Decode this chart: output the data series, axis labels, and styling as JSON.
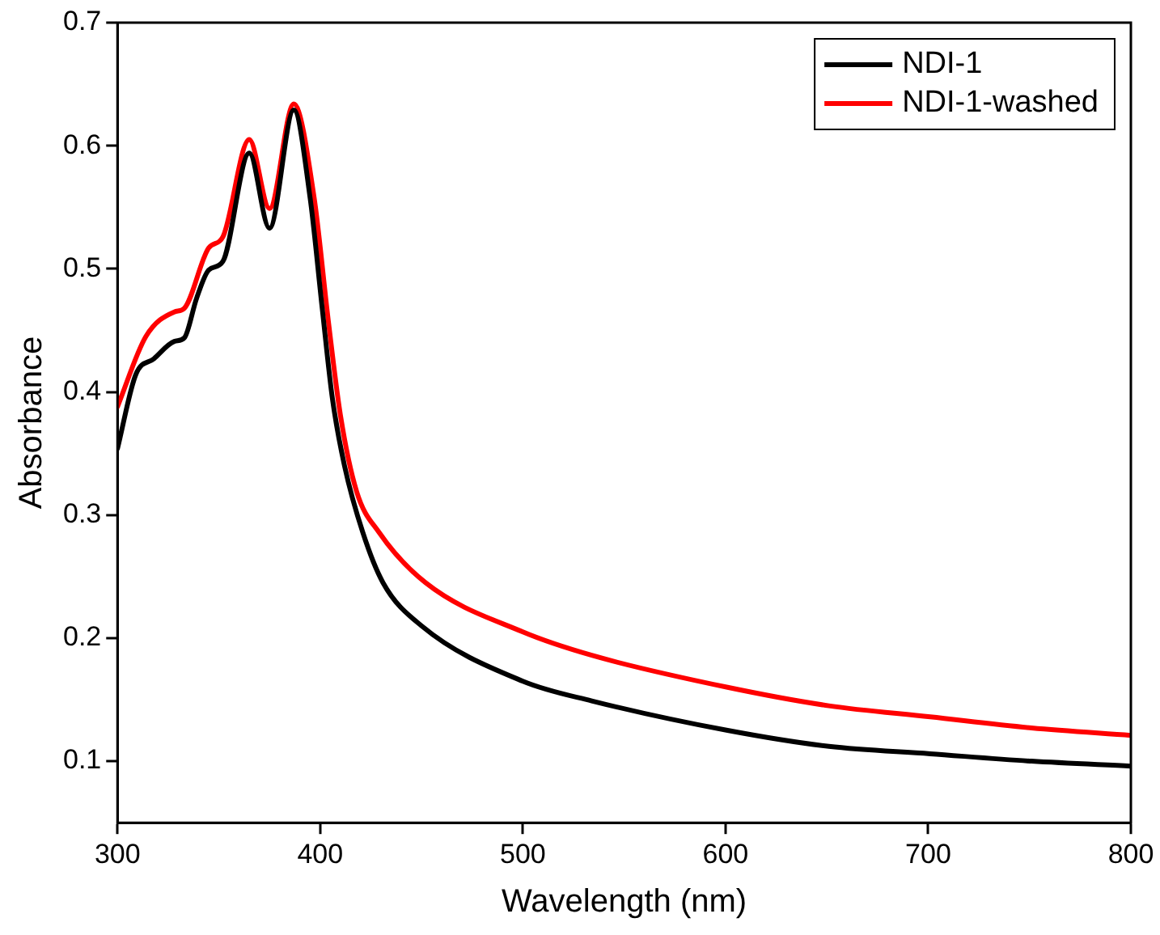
{
  "chart_data": {
    "type": "line",
    "xlabel": "Wavelength (nm)",
    "ylabel": "Absorbance",
    "xlim": [
      300,
      800
    ],
    "ylim": [
      0.05,
      0.7
    ],
    "xticks": [
      300,
      400,
      500,
      600,
      700,
      800
    ],
    "yticks": [
      0.1,
      0.2,
      0.3,
      0.4,
      0.5,
      0.6,
      0.7
    ],
    "grid": false,
    "legend": "top right",
    "marker": "none",
    "line_style": "solid",
    "series": [
      {
        "name": "NDI-1",
        "color": "#000000",
        "x": [
          300,
          309,
          318,
          328,
          333,
          339,
          345,
          352,
          365,
          375,
          387,
          395,
          401,
          406,
          412,
          421,
          431,
          450,
          500,
          534,
          601,
          651,
          701,
          751,
          800
        ],
        "values": [
          0.354,
          0.414,
          0.427,
          0.441,
          0.444,
          0.476,
          0.499,
          0.506,
          0.594,
          0.533,
          0.629,
          0.558,
          0.468,
          0.395,
          0.34,
          0.286,
          0.245,
          0.21,
          0.165,
          0.149,
          0.125,
          0.112,
          0.106,
          0.1,
          0.096
        ]
      },
      {
        "name": "NDI-1-washed",
        "color": "#ff0000",
        "x": [
          300,
          314,
          328,
          333,
          345,
          352,
          365,
          375,
          387,
          397,
          404,
          410,
          418,
          429,
          452,
          500,
          534,
          601,
          651,
          701,
          751,
          800
        ],
        "values": [
          0.388,
          0.445,
          0.465,
          0.468,
          0.517,
          0.526,
          0.605,
          0.549,
          0.634,
          0.558,
          0.458,
          0.381,
          0.319,
          0.286,
          0.245,
          0.205,
          0.186,
          0.16,
          0.145,
          0.136,
          0.127,
          0.121
        ]
      }
    ]
  }
}
